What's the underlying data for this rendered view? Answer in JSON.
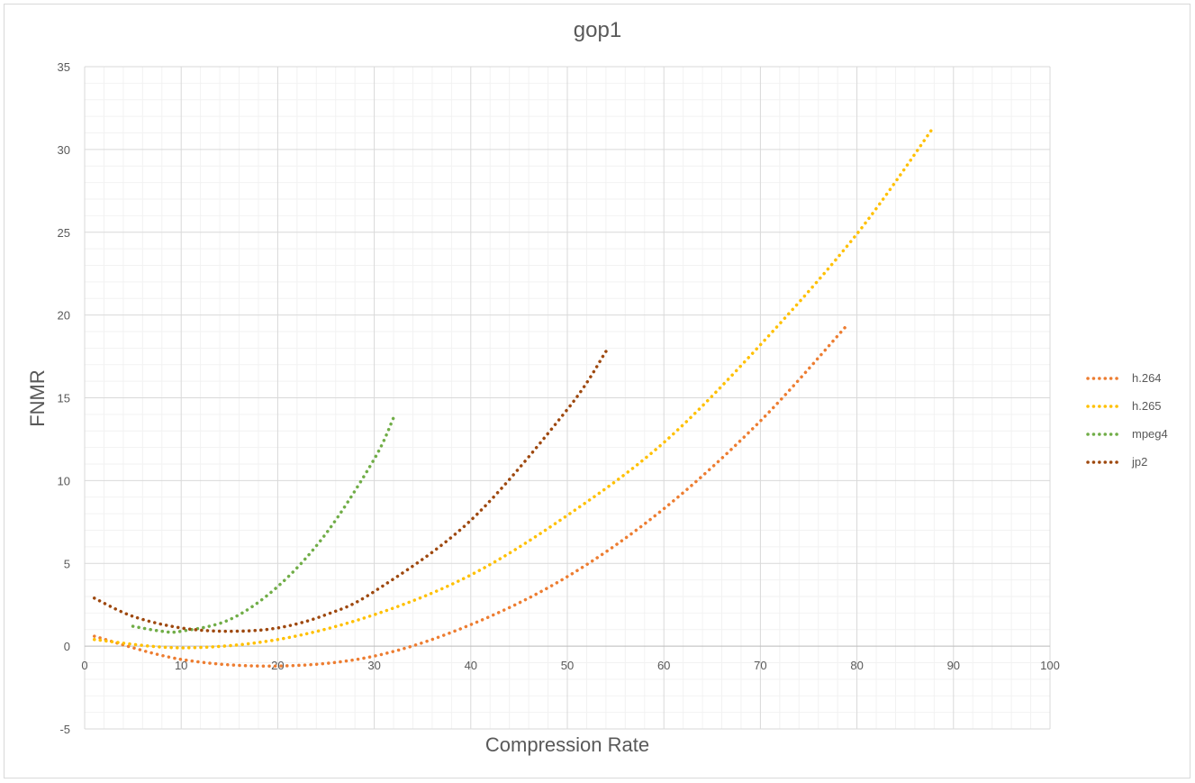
{
  "chart_data": {
    "type": "line",
    "title": "gop1",
    "xlabel": "Compression Rate",
    "ylabel": "FNMR",
    "xlim": [
      0,
      100
    ],
    "ylim": [
      -5,
      35
    ],
    "x_ticks": [
      "0",
      "10",
      "20",
      "30",
      "40",
      "50",
      "60",
      "70",
      "80",
      "90",
      "100"
    ],
    "y_ticks": [
      "-5",
      "0",
      "5",
      "10",
      "15",
      "20",
      "25",
      "30",
      "35"
    ],
    "grid": true,
    "minor_grid": true,
    "legend_position": "right",
    "line_style": "dotted",
    "series": [
      {
        "name": "h.264",
        "color": "#ED7D31",
        "x": [
          1,
          10,
          20,
          30,
          40,
          50,
          60,
          70,
          79
        ],
        "y": [
          0.6,
          -0.8,
          -1.2,
          -0.6,
          1.3,
          4.2,
          8.3,
          13.6,
          19.4
        ]
      },
      {
        "name": "h.265",
        "color": "#FFC000",
        "x": [
          1,
          10,
          20,
          30,
          40,
          50,
          60,
          70,
          80,
          88
        ],
        "y": [
          0.4,
          -0.1,
          0.4,
          1.9,
          4.3,
          7.9,
          12.3,
          18.2,
          24.9,
          31.4
        ]
      },
      {
        "name": "mpeg4",
        "color": "#70AD47",
        "x": [
          5,
          8,
          10,
          15,
          20,
          25,
          30,
          32
        ],
        "y": [
          1.2,
          0.9,
          0.9,
          1.6,
          3.6,
          6.8,
          11.3,
          13.8
        ]
      },
      {
        "name": "jp2",
        "color": "#9E480E",
        "x": [
          1,
          5,
          10,
          15,
          20,
          25,
          30,
          40,
          50,
          54
        ],
        "y": [
          2.9,
          1.8,
          1.1,
          0.9,
          1.1,
          1.9,
          3.3,
          7.6,
          14.3,
          17.8
        ]
      }
    ]
  }
}
